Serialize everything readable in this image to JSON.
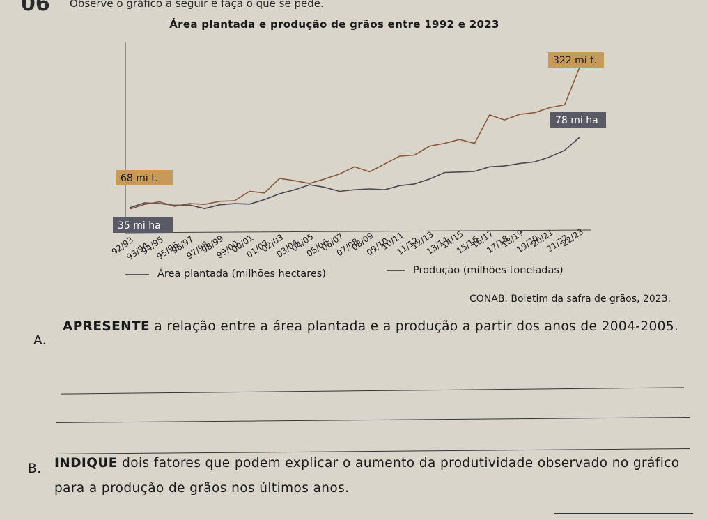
{
  "header": {
    "question_number": "06",
    "instruction": "Observe o gráfico a seguir e faça o que se pede."
  },
  "chart_data": {
    "type": "line",
    "title": "Área plantada e produção de grãos entre 1992 e 2023",
    "categories": [
      "92/93",
      "93/94",
      "94/95",
      "95/96",
      "96/97",
      "97/98",
      "98/99",
      "99/00",
      "00/01",
      "01/02",
      "02/03",
      "03/04",
      "04/05",
      "05/06",
      "06/07",
      "07/08",
      "08/09",
      "09/10",
      "10/11",
      "11/12",
      "12/13",
      "13/14",
      "14/15",
      "15/16",
      "16/17",
      "17/18",
      "18/19",
      "19/20",
      "20/21",
      "21/22",
      "22/23"
    ],
    "series": [
      {
        "name": "Área plantada (milhões hectares)",
        "color": "#4a4a52",
        "values": [
          35,
          38,
          37.5,
          36.5,
          36.7,
          34.5,
          36.8,
          37.5,
          37.2,
          40,
          43.5,
          46,
          49,
          47.5,
          45,
          46,
          46.5,
          46,
          48.5,
          49.5,
          52.5,
          56.5,
          56.8,
          57.2,
          60,
          60.5,
          62,
          63,
          66,
          70,
          78
        ]
      },
      {
        "name": "Produção (milhões toneladas)",
        "color": "#8b5a3c",
        "values": [
          68,
          76.5,
          81,
          73,
          78,
          76.5,
          82,
          83,
          100,
          97,
          123,
          119,
          114,
          122,
          131,
          144,
          135,
          149,
          163,
          165,
          181,
          186,
          193,
          186,
          237,
          228,
          238,
          241,
          250,
          255,
          322
        ]
      }
    ],
    "annotations": [
      "322 mi t.",
      "78 mi ha",
      "68 mi t.",
      "35 mi ha"
    ],
    "legend_position": "bottom",
    "grid": false
  },
  "source": "CONAB. Boletim da safra de grãos, 2023.",
  "question_a": {
    "letter": "A.",
    "keyword": "APRESENTE",
    "text": " a relação entre a área plantada e a produção a partir dos anos de 2004-2005."
  },
  "question_b": {
    "letter": "B.",
    "keyword": "INDIQUE",
    "text": " dois fatores que podem explicar o aumento da produtividade observado no gráfico para a produção de grãos nos últimos anos."
  }
}
